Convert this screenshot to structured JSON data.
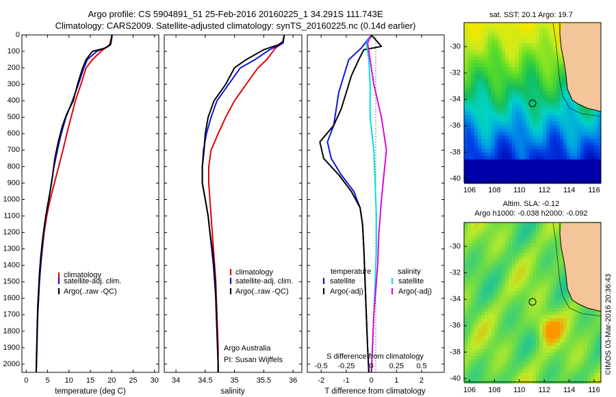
{
  "header": {
    "line1": "Argo profile: CS 5904891_51 25-Feb-2016 20160225_1 34.291S 111.743E",
    "line2": "Climatology: CARS2009. Satellite-adjusted climatology: synTS_20160225.nc (0.14d earlier)"
  },
  "colors": {
    "climatology": "#e00000",
    "satellite": "#1010e0",
    "argo": "#000000",
    "salinity_sat": "#00e0e0",
    "salinity_argo": "#e000e0"
  },
  "chart_data": [
    {
      "type": "line",
      "id": "temperature",
      "xlabel": "temperature (deg C)",
      "ylabel": "",
      "xlim": [
        -1,
        31
      ],
      "ylim": [
        2050,
        0
      ],
      "xticks": [
        0,
        5,
        10,
        15,
        20,
        25,
        30
      ],
      "yticks": [
        0,
        100,
        200,
        300,
        400,
        500,
        600,
        700,
        800,
        900,
        1000,
        1100,
        1200,
        1300,
        1400,
        1500,
        1600,
        1700,
        1800,
        1900,
        2000
      ],
      "legend": [
        "climatology",
        "satellite-adj. clim.",
        "Argo(..raw -QC)"
      ],
      "series": [
        {
          "name": "climatology",
          "role": "climatology",
          "points": [
            [
              20.1,
              0
            ],
            [
              19.8,
              30
            ],
            [
              19.5,
              60
            ],
            [
              17.5,
              100
            ],
            [
              15.5,
              150
            ],
            [
              14,
              200
            ],
            [
              12.8,
              300
            ],
            [
              11.5,
              400
            ],
            [
              10.5,
              500
            ],
            [
              9.5,
              600
            ],
            [
              8.6,
              700
            ],
            [
              7.6,
              800
            ],
            [
              6.6,
              900
            ],
            [
              5.6,
              1000
            ],
            [
              4.8,
              1100
            ],
            [
              4.2,
              1200
            ],
            [
              3.8,
              1300
            ],
            [
              3.4,
              1400
            ],
            [
              3.1,
              1500
            ],
            [
              2.9,
              1600
            ],
            [
              2.7,
              1700
            ],
            [
              2.6,
              1800
            ],
            [
              2.5,
              1900
            ],
            [
              2.4,
              2000
            ],
            [
              2.35,
              2050
            ]
          ]
        },
        {
          "name": "satellite-adj. clim.",
          "role": "satellite",
          "points": [
            [
              20.1,
              0
            ],
            [
              20,
              20
            ],
            [
              19.8,
              50
            ],
            [
              19.2,
              70
            ],
            [
              16.5,
              100
            ],
            [
              14.3,
              150
            ],
            [
              13.5,
              200
            ],
            [
              12.2,
              300
            ],
            [
              10.8,
              400
            ],
            [
              9.3,
              500
            ],
            [
              8.2,
              600
            ],
            [
              7.3,
              700
            ],
            [
              6.5,
              800
            ],
            [
              5.9,
              900
            ],
            [
              5.3,
              1000
            ],
            [
              4.6,
              1100
            ],
            [
              4.1,
              1200
            ],
            [
              3.7,
              1300
            ],
            [
              3.4,
              1400
            ],
            [
              3.1,
              1500
            ],
            [
              2.9,
              1600
            ],
            [
              2.7,
              1700
            ],
            [
              2.6,
              1800
            ],
            [
              2.5,
              1900
            ],
            [
              2.4,
              2000
            ],
            [
              2.35,
              2050
            ]
          ]
        },
        {
          "name": "Argo(..raw -QC)",
          "role": "argo",
          "points": [
            [
              20,
              0
            ],
            [
              19.9,
              30
            ],
            [
              19.7,
              60
            ],
            [
              18.5,
              80
            ],
            [
              15.5,
              100
            ],
            [
              14,
              150
            ],
            [
              13.2,
              200
            ],
            [
              12,
              300
            ],
            [
              11,
              400
            ],
            [
              9.5,
              480
            ],
            [
              8.5,
              550
            ],
            [
              7.5,
              650
            ],
            [
              6.7,
              750
            ],
            [
              6.2,
              850
            ],
            [
              5.6,
              950
            ],
            [
              4.9,
              1050
            ],
            [
              4.3,
              1150
            ],
            [
              3.8,
              1250
            ],
            [
              3.4,
              1350
            ],
            [
              3.1,
              1450
            ],
            [
              2.9,
              1550
            ],
            [
              2.7,
              1650
            ],
            [
              2.6,
              1750
            ],
            [
              2.5,
              1850
            ],
            [
              2.4,
              1950
            ],
            [
              2.35,
              2050
            ]
          ]
        }
      ]
    },
    {
      "type": "line",
      "id": "salinity",
      "xlabel": "salinity",
      "ylabel": "",
      "xlim": [
        33.8,
        36.15
      ],
      "ylim": [
        2050,
        0
      ],
      "xticks": [
        34,
        34.5,
        35,
        35.5,
        36
      ],
      "legend": [
        "climatology",
        "satellite-adj. clim.",
        "Argo(..raw -QC)"
      ],
      "annotation": [
        "Argo Australia",
        "PI: Susan Wijffels"
      ],
      "series": [
        {
          "name": "climatology",
          "role": "climatology",
          "points": [
            [
              35.85,
              0
            ],
            [
              35.82,
              50
            ],
            [
              35.7,
              80
            ],
            [
              35.55,
              150
            ],
            [
              35.4,
              200
            ],
            [
              35.2,
              300
            ],
            [
              35,
              400
            ],
            [
              34.85,
              500
            ],
            [
              34.72,
              600
            ],
            [
              34.6,
              700
            ],
            [
              34.56,
              800
            ],
            [
              34.56,
              900
            ],
            [
              34.58,
              1000
            ],
            [
              34.6,
              1100
            ],
            [
              34.62,
              1200
            ],
            [
              34.64,
              1300
            ],
            [
              34.66,
              1400
            ],
            [
              34.68,
              1500
            ],
            [
              34.69,
              1600
            ],
            [
              34.7,
              1700
            ],
            [
              34.71,
              1800
            ],
            [
              34.72,
              1900
            ],
            [
              34.72,
              2000
            ],
            [
              34.72,
              2050
            ]
          ]
        },
        {
          "name": "satellite-adj. clim.",
          "role": "satellite",
          "points": [
            [
              35.85,
              0
            ],
            [
              35.83,
              50
            ],
            [
              35.6,
              90
            ],
            [
              35.35,
              150
            ],
            [
              35.1,
              200
            ],
            [
              34.9,
              300
            ],
            [
              34.7,
              400
            ],
            [
              34.6,
              500
            ],
            [
              34.52,
              600
            ],
            [
              34.47,
              700
            ],
            [
              34.45,
              800
            ],
            [
              34.45,
              900
            ],
            [
              34.5,
              1000
            ],
            [
              34.55,
              1100
            ],
            [
              34.58,
              1200
            ],
            [
              34.61,
              1300
            ],
            [
              34.64,
              1400
            ],
            [
              34.66,
              1500
            ],
            [
              34.68,
              1600
            ],
            [
              34.69,
              1700
            ],
            [
              34.7,
              1800
            ],
            [
              34.71,
              1900
            ],
            [
              34.72,
              2000
            ],
            [
              34.72,
              2050
            ]
          ]
        },
        {
          "name": "Argo(..raw -QC)",
          "role": "argo",
          "points": [
            [
              35.85,
              0
            ],
            [
              35.83,
              40
            ],
            [
              35.75,
              60
            ],
            [
              35.5,
              90
            ],
            [
              35.2,
              150
            ],
            [
              35,
              200
            ],
            [
              34.85,
              300
            ],
            [
              34.65,
              400
            ],
            [
              34.55,
              500
            ],
            [
              34.5,
              600
            ],
            [
              34.48,
              700
            ],
            [
              34.45,
              800
            ],
            [
              34.45,
              900
            ],
            [
              34.5,
              1000
            ],
            [
              34.55,
              1100
            ],
            [
              34.58,
              1200
            ],
            [
              34.62,
              1300
            ],
            [
              34.65,
              1400
            ],
            [
              34.67,
              1500
            ],
            [
              34.68,
              1600
            ],
            [
              34.69,
              1700
            ],
            [
              34.7,
              1800
            ],
            [
              34.71,
              1900
            ],
            [
              34.72,
              2000
            ],
            [
              34.72,
              2050
            ]
          ]
        }
      ]
    },
    {
      "type": "line",
      "id": "difference",
      "xlabel": "T difference from climatology",
      "xlabel_top": "S difference from climatology",
      "xlim": [
        -2.55,
        2.9
      ],
      "ylim": [
        2050,
        0
      ],
      "xticks": [
        -2,
        -1,
        0,
        1,
        2
      ],
      "xticks_top": [
        "-0.5",
        "-0.25",
        "0",
        "0.25",
        "0.5"
      ],
      "legend_headers": [
        "temperature",
        "salinity"
      ],
      "legend": [
        "satellite",
        "Argo(-adj)",
        "satellite",
        "Argo(-adj)"
      ],
      "series": [
        {
          "name": "satellite",
          "role": "satellite",
          "points": [
            [
              0,
              0
            ],
            [
              -0.4,
              80
            ],
            [
              -0.9,
              150
            ],
            [
              -1.1,
              250
            ],
            [
              -1.3,
              350
            ],
            [
              -1.4,
              450
            ],
            [
              -1.5,
              550
            ],
            [
              -1.75,
              650
            ],
            [
              -1.6,
              750
            ],
            [
              -1.2,
              850
            ],
            [
              -0.7,
              950
            ],
            [
              -0.45,
              1050
            ],
            [
              -0.35,
              1150
            ],
            [
              -0.3,
              1300
            ],
            [
              -0.25,
              1500
            ],
            [
              -0.2,
              1700
            ],
            [
              -0.15,
              1900
            ],
            [
              -0.1,
              2050
            ]
          ]
        },
        {
          "name": "Argo(-adj)",
          "role": "argo",
          "points": [
            [
              0,
              0
            ],
            [
              0.4,
              70
            ],
            [
              -0.3,
              90
            ],
            [
              -0.5,
              150
            ],
            [
              -0.8,
              250
            ],
            [
              -1.0,
              350
            ],
            [
              -1.2,
              450
            ],
            [
              -1.5,
              550
            ],
            [
              -2.05,
              650
            ],
            [
              -1.9,
              750
            ],
            [
              -1.3,
              850
            ],
            [
              -0.8,
              950
            ],
            [
              -0.45,
              1050
            ],
            [
              -0.35,
              1150
            ],
            [
              -0.3,
              1300
            ],
            [
              -0.25,
              1500
            ],
            [
              -0.2,
              1700
            ],
            [
              -0.15,
              1900
            ],
            [
              -0.1,
              2050
            ]
          ]
        },
        {
          "name": "satellite",
          "role": "salinity_sat",
          "points": [
            [
              0,
              0
            ],
            [
              -0.2,
              50
            ],
            [
              -0.1,
              150
            ],
            [
              -0.05,
              300
            ],
            [
              -0.05,
              500
            ],
            [
              0.1,
              700
            ],
            [
              0.15,
              900
            ],
            [
              0.2,
              1100
            ],
            [
              0.2,
              1300
            ],
            [
              0.15,
              1500
            ],
            [
              0.1,
              1700
            ],
            [
              0.05,
              1900
            ],
            [
              0,
              2050
            ]
          ]
        },
        {
          "name": "Argo(-adj)",
          "role": "salinity_argo",
          "points": [
            [
              0,
              0
            ],
            [
              -0.15,
              50
            ],
            [
              -0.05,
              150
            ],
            [
              0.1,
              300
            ],
            [
              0.4,
              500
            ],
            [
              0.6,
              700
            ],
            [
              0.5,
              850
            ],
            [
              0.4,
              1000
            ],
            [
              0.3,
              1200
            ],
            [
              0.25,
              1400
            ],
            [
              0.1,
              1700
            ],
            [
              0,
              2050
            ]
          ]
        }
      ]
    }
  ],
  "maps": {
    "sst": {
      "title": "sat. SST: 20.1  Argo: 19.7",
      "xticks": [
        "106",
        "108",
        "110",
        "112",
        "114",
        "116"
      ],
      "yticks": [
        "-30",
        "-32",
        "-34",
        "-36",
        "-38",
        "-40"
      ]
    },
    "sla": {
      "title1": "Altim. SLA: -0.12",
      "title2": "Argo h1000: -0.038 h2000: -0.092",
      "xticks": [
        "106",
        "108",
        "110",
        "112",
        "114",
        "116"
      ],
      "yticks": [
        "-30",
        "-32",
        "-34",
        "-36",
        "-38",
        "-40"
      ]
    }
  },
  "credit": "©IMOS 03-Mar-2016 20:36:43"
}
